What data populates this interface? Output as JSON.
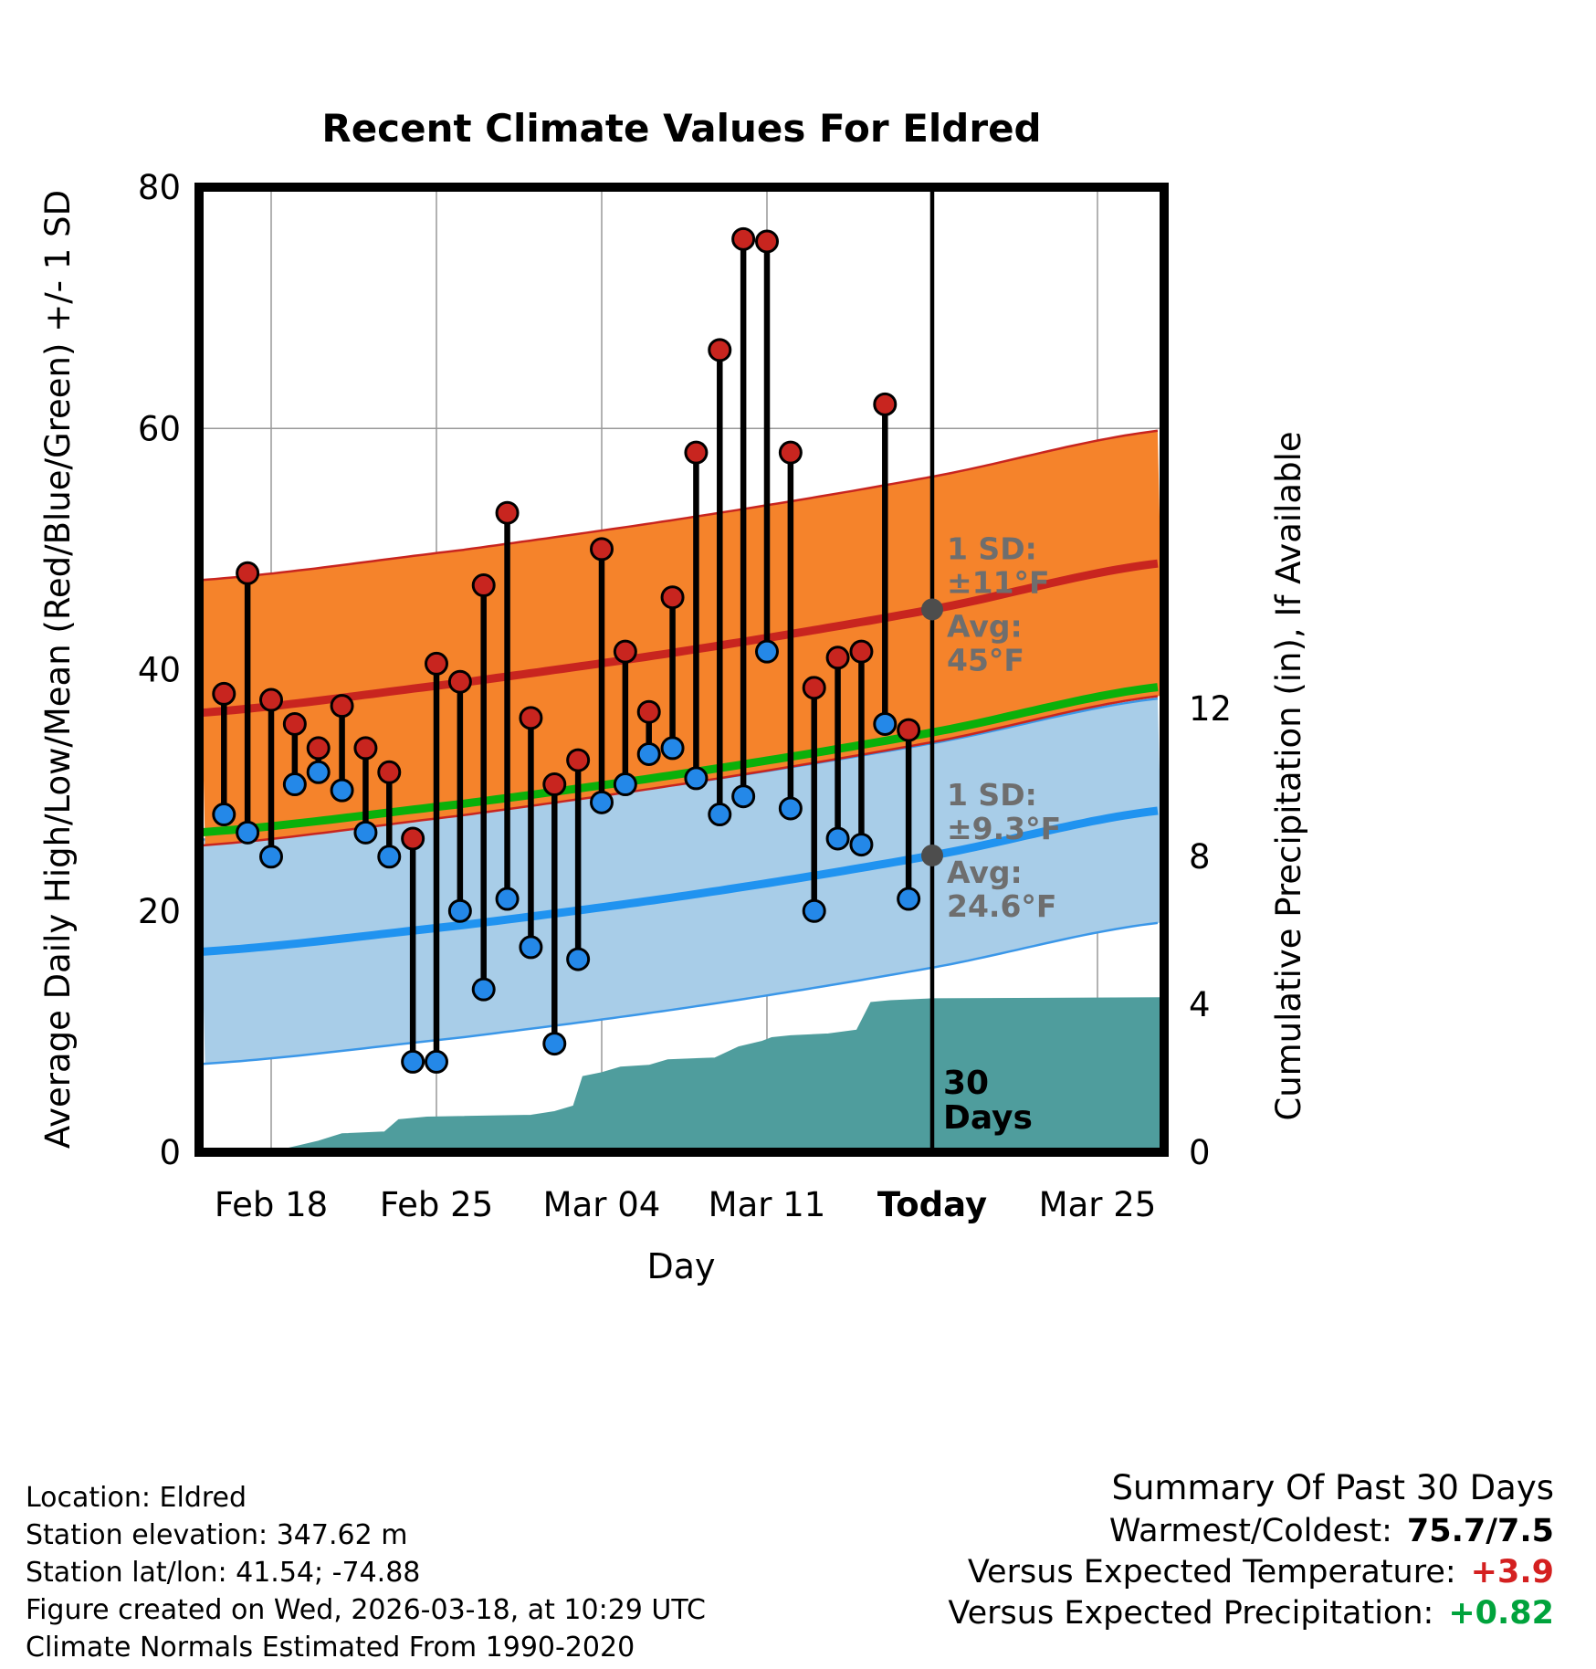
{
  "title": "Recent Climate Values For Eldred",
  "colors": {
    "high": "#c8251f",
    "high_band": "#f5832b",
    "high_band_edge": "#c8251f",
    "low": "#2488e8",
    "low_line": "#2093f0",
    "low_band": "#a8cde8",
    "low_band_edge": "#3b97e8",
    "mean": "#0ab00a",
    "precip_fill": "#4f9d9d",
    "grid": "#999999",
    "annotation": "#6e6e6e",
    "today_line": "#000000",
    "temp_anomaly": "#d42020",
    "precip_anomaly": "#00a33c"
  },
  "axes": {
    "x_label": "Day",
    "y_left_label": "Average Daily High/Low/Mean (Red/Blue/Green) +/- 1 SD",
    "y_right_label": "Cumulative Precipitation (in), If Available",
    "y_left_ticks": [
      0,
      20,
      40,
      60,
      80
    ],
    "y_right_ticks": [
      0,
      4,
      8,
      12
    ],
    "x_ticks": [
      {
        "label": "Feb 18",
        "day": 2
      },
      {
        "label": "Feb 25",
        "day": 9
      },
      {
        "label": "Mar 04",
        "day": 16
      },
      {
        "label": "Mar 11",
        "day": 23
      },
      {
        "label": "Today",
        "day": 30,
        "bold": true
      },
      {
        "label": "Mar 25",
        "day": 37
      }
    ]
  },
  "chart_data": {
    "type": "line",
    "title": "Recent Climate Values For Eldred",
    "xlabel": "Day",
    "ylabel_left": "Average Daily High/Low/Mean (Red/Blue/Green) +/- 1 SD",
    "ylabel_right": "Cumulative Precipitation (in), If Available",
    "ylim_temp": [
      0,
      80
    ],
    "x_axis_note": "day index 0 = Feb 16; Today = day 30 = Mar 18",
    "dates": [
      "Feb 16",
      "Feb 17",
      "Feb 18",
      "Feb 19",
      "Feb 20",
      "Feb 21",
      "Feb 22",
      "Feb 23",
      "Feb 24",
      "Feb 25",
      "Feb 26",
      "Feb 27",
      "Feb 28",
      "Mar 01",
      "Mar 02",
      "Mar 03",
      "Mar 04",
      "Mar 05",
      "Mar 06",
      "Mar 07",
      "Mar 08",
      "Mar 09",
      "Mar 10",
      "Mar 11",
      "Mar 12",
      "Mar 13",
      "Mar 14",
      "Mar 15",
      "Mar 16",
      "Mar 17"
    ],
    "series": [
      {
        "name": "Daily High (°F)",
        "color": "#c8251f",
        "values": [
          38,
          48,
          37.5,
          35.5,
          33.5,
          37,
          33.5,
          31.5,
          26,
          40.5,
          39,
          47,
          53,
          36,
          30.5,
          32.5,
          50,
          41.5,
          36.5,
          46,
          58,
          66.5,
          75.7,
          75.5,
          58,
          38.5,
          41,
          41.5,
          62,
          35
        ]
      },
      {
        "name": "Daily Low (°F)",
        "color": "#2488e8",
        "values": [
          28,
          26.5,
          24.5,
          30.5,
          31.5,
          30,
          26.5,
          24.5,
          7.5,
          7.5,
          20,
          13.5,
          21,
          17,
          9,
          16,
          29,
          30.5,
          33,
          33.5,
          31,
          28,
          29.5,
          41.5,
          28.5,
          20,
          26,
          25.5,
          35.5,
          21
        ]
      }
    ],
    "normals": {
      "control_days": [
        -2,
        10,
        20,
        30,
        40
      ],
      "avg_high": [
        36.3,
        38.9,
        41.7,
        45.0,
        48.9
      ],
      "avg_low": [
        16.5,
        18.8,
        21.4,
        24.6,
        28.4
      ],
      "sd_high": 11,
      "sd_low": 9.3
    },
    "precipitation_cumulative": {
      "unit": "in",
      "axis_ticks": [
        0,
        4,
        8,
        12
      ],
      "points": [
        [
          2,
          0
        ],
        [
          2.8,
          0.12
        ],
        [
          3.2,
          0.18
        ],
        [
          4,
          0.3
        ],
        [
          4.6,
          0.42
        ],
        [
          5,
          0.5
        ],
        [
          6.8,
          0.55
        ],
        [
          7.4,
          0.88
        ],
        [
          8.6,
          0.95
        ],
        [
          13,
          1.0
        ],
        [
          14,
          1.1
        ],
        [
          14.8,
          1.25
        ],
        [
          15.2,
          2.05
        ],
        [
          16,
          2.15
        ],
        [
          16.8,
          2.3
        ],
        [
          18,
          2.35
        ],
        [
          18.8,
          2.5
        ],
        [
          20.8,
          2.55
        ],
        [
          21.8,
          2.85
        ],
        [
          22.8,
          3.0
        ],
        [
          23.2,
          3.1
        ],
        [
          24,
          3.15
        ],
        [
          25.6,
          3.2
        ],
        [
          26.8,
          3.3
        ],
        [
          27.4,
          4.05
        ],
        [
          28.2,
          4.1
        ],
        [
          30,
          4.15
        ],
        [
          39.8,
          4.18
        ]
      ]
    },
    "annotations": {
      "high": {
        "day": 30,
        "value": 45,
        "lines": [
          "1 SD:",
          "±11°F",
          "Avg:",
          "45°F"
        ]
      },
      "low": {
        "day": 30,
        "value": 24.6,
        "lines": [
          "1 SD:",
          "±9.3°F",
          "Avg:",
          "24.6°F"
        ]
      },
      "period": {
        "day": 30,
        "lines": [
          "30",
          "Days"
        ]
      }
    },
    "legend_position": "none",
    "grid": true
  },
  "footer_left": [
    "Location: Eldred",
    "Station elevation: 347.62 m",
    "Station lat/lon: 41.54; -74.88",
    "Figure created on Wed, 2026-03-18, at 10:29 UTC",
    "Climate Normals Estimated From 1990-2020"
  ],
  "summary": {
    "title": "Summary Of Past 30 Days",
    "rows": [
      {
        "label": "Warmest/Coldest:",
        "value": "75.7/7.5"
      },
      {
        "label": "Versus Expected Temperature:",
        "value": "+3.9"
      },
      {
        "label": "Versus Expected Precipitation:",
        "value": "+0.82"
      }
    ]
  }
}
